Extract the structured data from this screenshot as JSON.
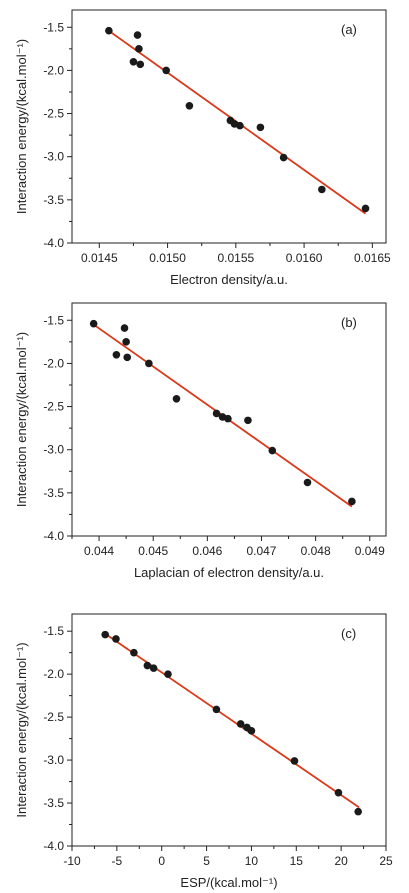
{
  "chart_data": [
    {
      "type": "scatter",
      "panel_label": "(a)",
      "xlabel": "Electron density/a.u.",
      "ylabel": "Interaction energy/(kcal.mol⁻¹)",
      "xlim": [
        0.0143,
        0.0166
      ],
      "ylim": [
        -4.0,
        -1.3
      ],
      "xticks": [
        0.0145,
        0.015,
        0.0155,
        0.016,
        0.0165
      ],
      "xtick_labels": [
        "0.0145",
        "0.0150",
        "0.0155",
        "0.0160",
        "0.0165"
      ],
      "yticks": [
        -1.5,
        -2.0,
        -2.5,
        -3.0,
        -3.5,
        -4.0
      ],
      "ytick_labels": [
        "-1.5",
        "-2.0",
        "-2.5",
        "-3.0",
        "-3.5",
        "-4.0"
      ],
      "points": {
        "x": [
          0.01457,
          0.01475,
          0.01478,
          0.01479,
          0.0148,
          0.01499,
          0.01516,
          0.01546,
          0.01549,
          0.01553,
          0.01568,
          0.01585,
          0.01613,
          0.01645
        ],
        "y": [
          -1.54,
          -1.9,
          -1.59,
          -1.75,
          -1.93,
          -2.0,
          -2.41,
          -2.58,
          -2.62,
          -2.64,
          -2.66,
          -3.01,
          -3.38,
          -3.6
        ]
      },
      "fit_line": {
        "x": [
          0.01456,
          0.01645
        ],
        "y": [
          -1.53,
          -3.66
        ]
      },
      "marker_color": "#1a1a1a",
      "line_color": "#d93a1a"
    },
    {
      "type": "scatter",
      "panel_label": "(b)",
      "xlabel": "Laplacian of electron density/a.u.",
      "ylabel": "Interaction energy/(kcal.mol⁻¹)",
      "xlim": [
        0.0435,
        0.0493
      ],
      "ylim": [
        -4.0,
        -1.3
      ],
      "xticks": [
        0.044,
        0.045,
        0.046,
        0.047,
        0.048,
        0.049
      ],
      "xtick_labels": [
        "0.044",
        "0.045",
        "0.046",
        "0.047",
        "0.048",
        "0.049"
      ],
      "yticks": [
        -1.5,
        -2.0,
        -2.5,
        -3.0,
        -3.5,
        -4.0
      ],
      "ytick_labels": [
        "-1.5",
        "-2.0",
        "-2.5",
        "-3.0",
        "-3.5",
        "-4.0"
      ],
      "points": {
        "x": [
          0.0439,
          0.04432,
          0.04447,
          0.0445,
          0.04452,
          0.04492,
          0.04543,
          0.04617,
          0.04628,
          0.04638,
          0.04675,
          0.0472,
          0.04785,
          0.04867
        ],
        "y": [
          -1.54,
          -1.9,
          -1.59,
          -1.75,
          -1.93,
          -2.0,
          -2.41,
          -2.58,
          -2.62,
          -2.64,
          -2.66,
          -3.01,
          -3.38,
          -3.6
        ]
      },
      "fit_line": {
        "x": [
          0.0439,
          0.04867
        ],
        "y": [
          -1.55,
          -3.66
        ]
      },
      "marker_color": "#1a1a1a",
      "line_color": "#d93a1a"
    },
    {
      "type": "scatter",
      "panel_label": "(c)",
      "xlabel": "ESP/(kcal.mol⁻¹)",
      "ylabel": "Interaction energy/(kcal.mol⁻¹)",
      "xlim": [
        -10,
        25
      ],
      "ylim": [
        -4.0,
        -1.3
      ],
      "xticks": [
        -10,
        -5,
        0,
        5,
        10,
        15,
        20,
        25
      ],
      "xtick_labels": [
        "-10",
        "-5",
        "0",
        "5",
        "10",
        "15",
        "20",
        "25"
      ],
      "yticks": [
        -1.5,
        -2.0,
        -2.5,
        -3.0,
        -3.5,
        -4.0
      ],
      "ytick_labels": [
        "-1.5",
        "-2.0",
        "-2.5",
        "-3.0",
        "-3.5",
        "-4.0"
      ],
      "points": {
        "x": [
          -6.3,
          -5.1,
          -3.1,
          -1.6,
          -0.9,
          0.7,
          6.1,
          8.8,
          9.5,
          10.0,
          14.8,
          19.7,
          21.9
        ],
        "y": [
          -1.54,
          -1.59,
          -1.75,
          -1.9,
          -1.93,
          -2.0,
          -2.41,
          -2.58,
          -2.62,
          -2.66,
          -3.01,
          -3.38,
          -3.6
        ]
      },
      "fit_line": {
        "x": [
          -6.3,
          22.0
        ],
        "y": [
          -1.53,
          -3.55
        ]
      },
      "marker_color": "#1a1a1a",
      "line_color": "#d93a1a"
    }
  ]
}
